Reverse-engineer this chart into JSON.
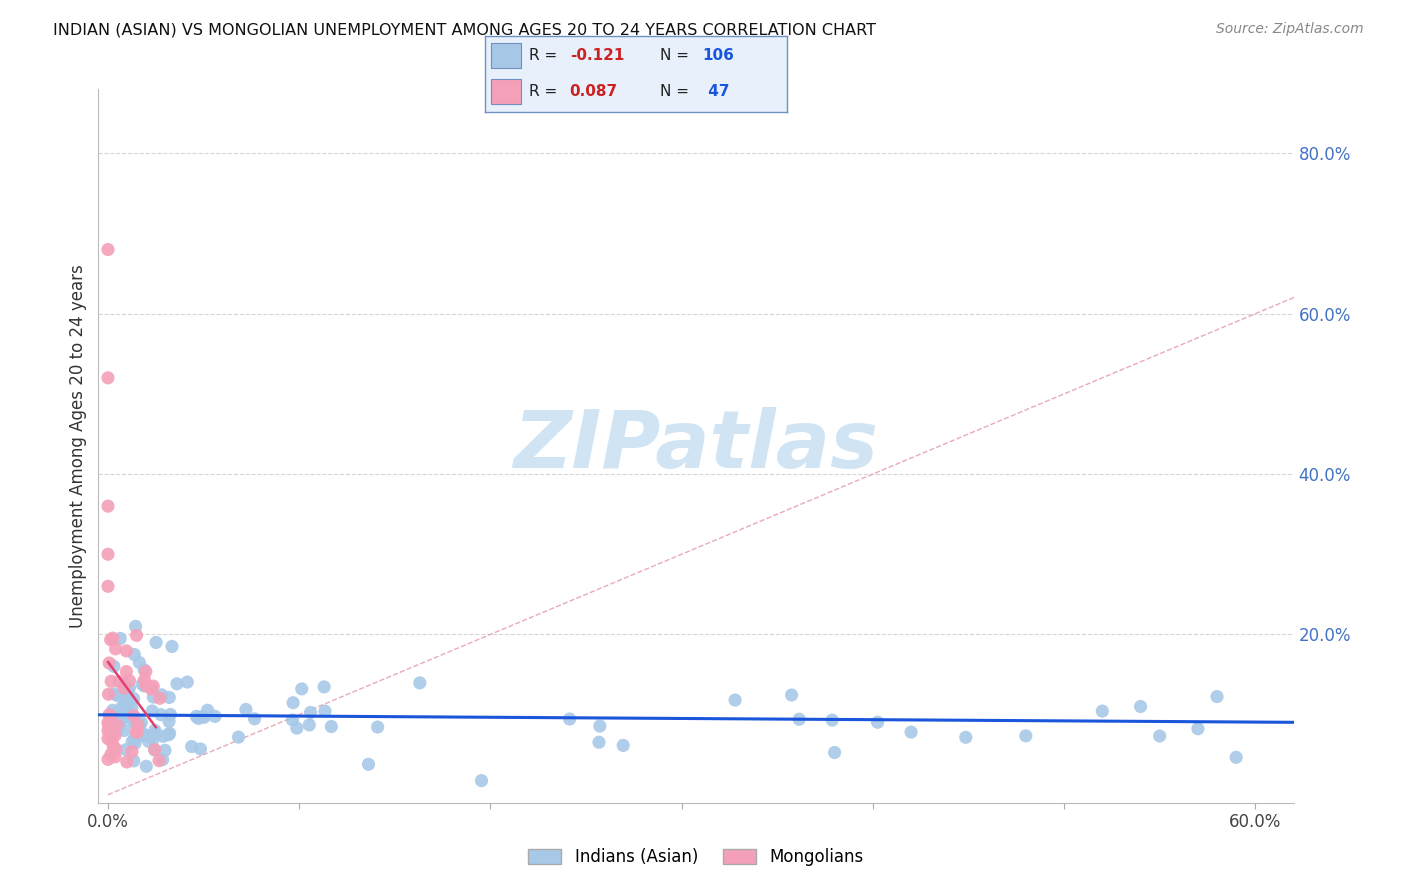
{
  "title": "INDIAN (ASIAN) VS MONGOLIAN UNEMPLOYMENT AMONG AGES 20 TO 24 YEARS CORRELATION CHART",
  "source": "Source: ZipAtlas.com",
  "ylabel": "Unemployment Among Ages 20 to 24 years",
  "xlim": [
    -0.005,
    0.62
  ],
  "ylim": [
    -0.01,
    0.88
  ],
  "xtick_positions": [
    0.0,
    0.1,
    0.2,
    0.3,
    0.4,
    0.5,
    0.6
  ],
  "xtick_labels": [
    "0.0%",
    "",
    "",
    "",
    "",
    "",
    "60.0%"
  ],
  "ytick_positions": [
    0.0,
    0.2,
    0.4,
    0.6,
    0.8
  ],
  "ytick_labels": [
    "",
    "20.0%",
    "40.0%",
    "60.0%",
    "80.0%"
  ],
  "indian_R": -0.121,
  "indian_N": 106,
  "mongolian_R": 0.087,
  "mongolian_N": 47,
  "indian_color": "#a8c8e8",
  "mongolian_color": "#f4a0b8",
  "indian_line_color": "#1a56db",
  "mongolian_line_color": "#e04070",
  "diagonal_color": "#e8a0b0",
  "watermark_color": "#d0e4f4",
  "background_color": "#ffffff",
  "grid_color": "#cccccc",
  "title_color": "#111111",
  "right_axis_color": "#4472c4",
  "legend_box_color": "#e8f0fc",
  "legend_border_color": "#7090c0"
}
